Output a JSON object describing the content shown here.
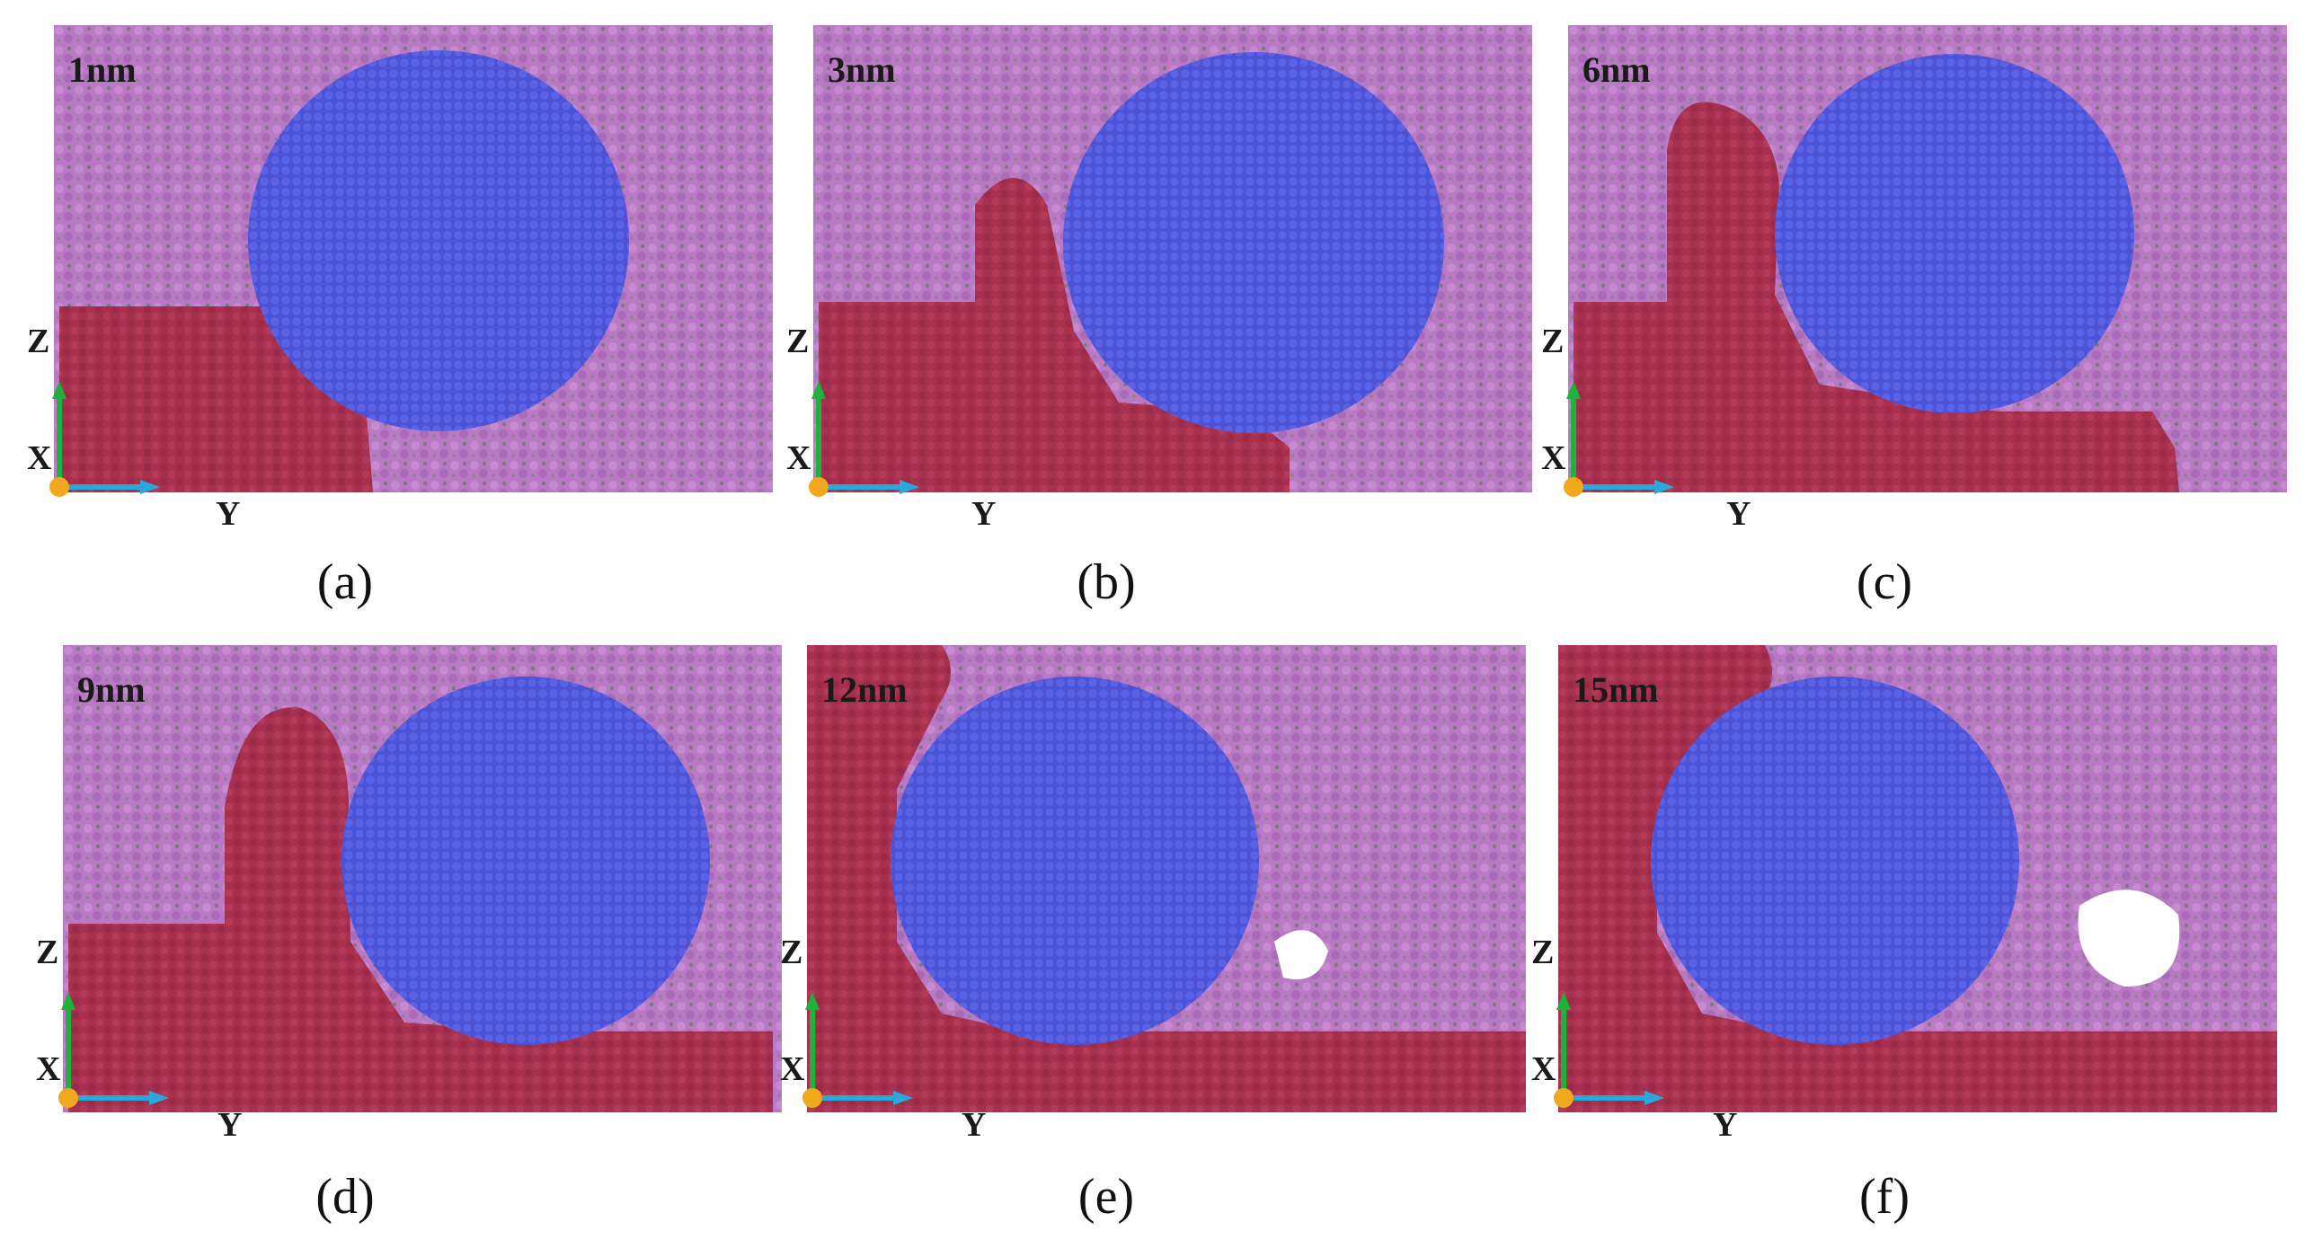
{
  "panels": [
    {
      "time_label": "1nm",
      "caption": "(a)",
      "axis": {
        "z": "Z",
        "x": "X",
        "y": "Y"
      }
    },
    {
      "time_label": "3nm",
      "caption": "(b)",
      "axis": {
        "z": "Z",
        "x": "X",
        "y": "Y"
      }
    },
    {
      "time_label": "6nm",
      "caption": "(c)",
      "axis": {
        "z": "Z",
        "x": "X",
        "y": "Y"
      }
    },
    {
      "time_label": "9nm",
      "caption": "(d)",
      "axis": {
        "z": "Z",
        "x": "X",
        "y": "Y"
      }
    },
    {
      "time_label": "12nm",
      "caption": "(e)",
      "axis": {
        "z": "Z",
        "x": "X",
        "y": "Y"
      }
    },
    {
      "time_label": "15nm",
      "caption": "(f)",
      "axis": {
        "z": "Z",
        "x": "X",
        "y": "Y"
      }
    }
  ],
  "colors": {
    "matrix": "#b979c4",
    "matrix_dark": "#8e6f88",
    "substrate": "#a8304f",
    "particle": "#4b52d6",
    "axis_z": "#1db33b",
    "axis_y": "#2aa7dc",
    "origin": "#f2a81d"
  }
}
